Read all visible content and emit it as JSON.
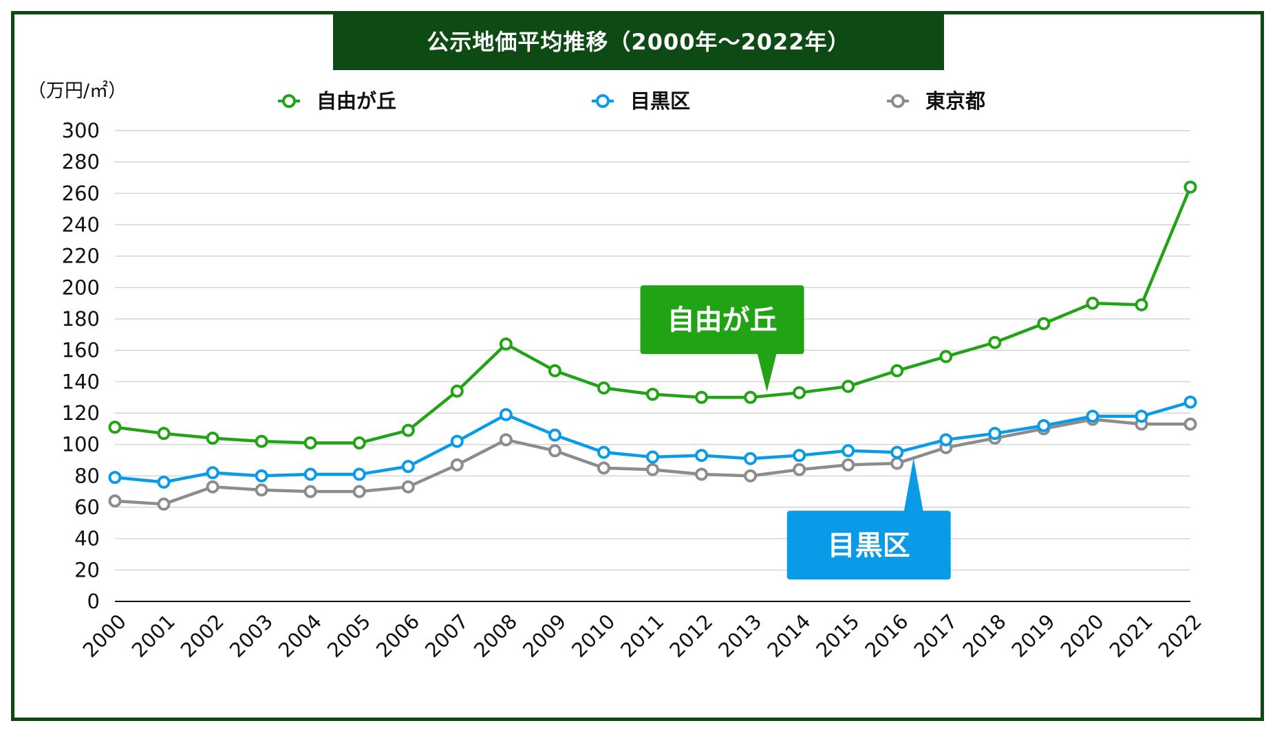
{
  "chart_data": {
    "type": "line",
    "title": "公示地価平均推移（2000年～2022年）",
    "unit_label": "（万円/㎡）",
    "categories": [
      "2000",
      "2001",
      "2002",
      "2003",
      "2004",
      "2005",
      "2006",
      "2007",
      "2008",
      "2009",
      "2010",
      "2011",
      "2012",
      "2013",
      "2014",
      "2015",
      "2016",
      "2017",
      "2018",
      "2019",
      "2020",
      "2021",
      "2022"
    ],
    "ylim": [
      0,
      300
    ],
    "yticks": [
      0,
      20,
      40,
      60,
      80,
      100,
      120,
      140,
      160,
      180,
      200,
      220,
      240,
      260,
      280,
      300
    ],
    "grid": true,
    "legend_position": "top",
    "series": [
      {
        "name": "自由が丘",
        "color": "#22a315",
        "values": [
          111,
          107,
          104,
          102,
          101,
          101,
          109,
          134,
          164,
          147,
          136,
          132,
          130,
          130,
          133,
          137,
          147,
          156,
          165,
          177,
          190,
          189,
          264
        ]
      },
      {
        "name": "目黒区",
        "color": "#0a9be8",
        "values": [
          79,
          76,
          82,
          80,
          81,
          81,
          86,
          102,
          119,
          106,
          95,
          92,
          93,
          91,
          93,
          96,
          95,
          103,
          107,
          112,
          118,
          118,
          127
        ]
      },
      {
        "name": "東京都",
        "color": "#8c8c8c",
        "values": [
          64,
          62,
          73,
          71,
          70,
          70,
          73,
          87,
          103,
          96,
          85,
          84,
          81,
          80,
          84,
          87,
          88,
          98,
          104,
          110,
          116,
          113,
          113
        ]
      }
    ],
    "annotations": [
      {
        "text": "自由が丘",
        "series": "自由が丘",
        "year": "2013",
        "color": "#22a315"
      },
      {
        "text": "目黒区",
        "series": "目黒区",
        "year": "2016",
        "color": "#0a9be8"
      }
    ]
  }
}
